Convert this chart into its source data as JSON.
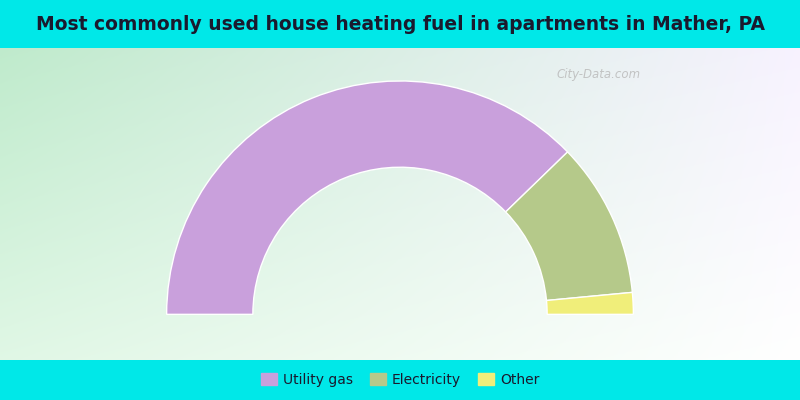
{
  "title": "Most commonly used house heating fuel in apartments in Mather, PA",
  "segments": [
    {
      "label": "Utility gas",
      "value": 75.5,
      "color": "#c9a0dc"
    },
    {
      "label": "Electricity",
      "value": 21.5,
      "color": "#b5c98a"
    },
    {
      "label": "Other",
      "value": 3.0,
      "color": "#f0ee7a"
    }
  ],
  "background_color_outer": "#00e8e8",
  "title_color": "#1a1a2e",
  "title_fontsize": 13.5,
  "legend_fontsize": 10,
  "watermark": "City-Data.com",
  "outer_r": 0.92,
  "inner_r": 0.58
}
